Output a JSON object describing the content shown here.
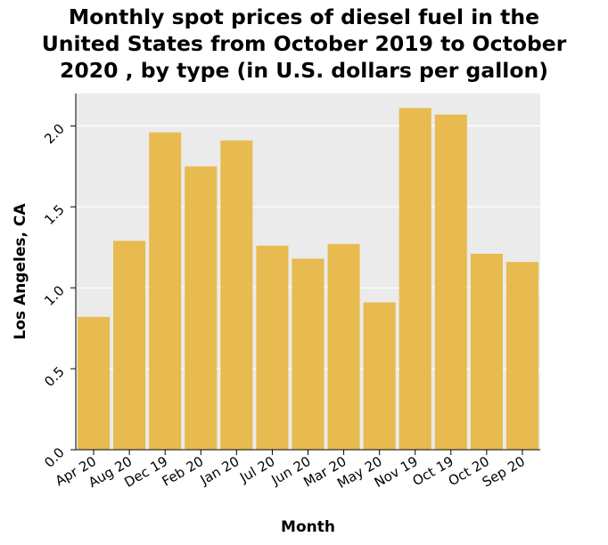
{
  "chart_data": {
    "type": "bar",
    "title_lines": [
      "Monthly spot prices of diesel fuel in the",
      "United States from October 2019 to October",
      "2020 , by type (in U.S. dollars per gallon)"
    ],
    "xlabel": "Month",
    "ylabel": "Los Angeles, CA",
    "categories": [
      "Apr 20",
      "Aug 20",
      "Dec 19",
      "Feb 20",
      "Jan 20",
      "Jul 20",
      "Jun 20",
      "Mar 20",
      "May 20",
      "Nov 19",
      "Oct 19",
      "Oct 20",
      "Sep 20"
    ],
    "values": [
      0.82,
      1.29,
      1.96,
      1.75,
      1.91,
      1.26,
      1.18,
      1.27,
      0.91,
      2.11,
      2.07,
      1.21,
      1.16
    ],
    "ylim": [
      0,
      2.2
    ],
    "yticks": [
      "0.0",
      "0.5",
      "1.0",
      "1.5",
      "2.0"
    ],
    "grid": true,
    "colors": {
      "bar": "#e8bb50",
      "plot_bg": "#ebebeb",
      "grid": "#ffffff"
    }
  }
}
